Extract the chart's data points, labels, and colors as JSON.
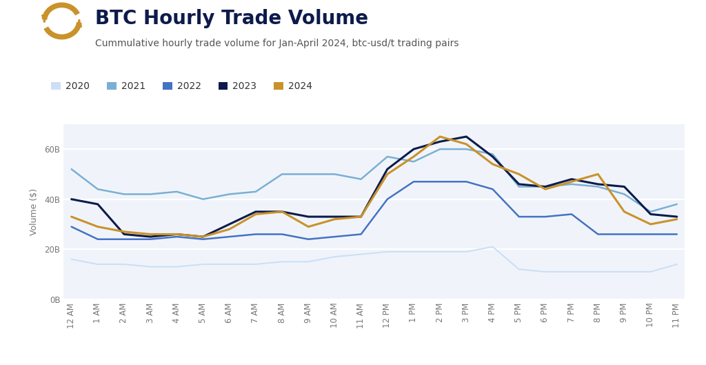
{
  "title": "BTC Hourly Trade Volume",
  "subtitle": "Cummulative hourly trade volume for Jan-April 2024, btc-usd/t trading pairs",
  "ylabel": "Volume ($)",
  "hours": [
    "12 AM",
    "1 AM",
    "2 AM",
    "3 AM",
    "4 AM",
    "5 AM",
    "6 AM",
    "7 AM",
    "8 AM",
    "9 AM",
    "10 AM",
    "11 AM",
    "12 PM",
    "1 PM",
    "2 PM",
    "3 PM",
    "4 PM",
    "5 PM",
    "6 PM",
    "7 PM",
    "8 PM",
    "9 PM",
    "10 PM",
    "11 PM"
  ],
  "series": {
    "2020": [
      16,
      14,
      14,
      13,
      13,
      14,
      14,
      14,
      15,
      15,
      17,
      18,
      19,
      19,
      19,
      19,
      21,
      12,
      11,
      11,
      11,
      11,
      11,
      14
    ],
    "2021": [
      52,
      44,
      42,
      42,
      43,
      40,
      42,
      43,
      50,
      50,
      50,
      48,
      57,
      55,
      60,
      60,
      58,
      45,
      45,
      46,
      45,
      42,
      35,
      38
    ],
    "2022": [
      29,
      24,
      24,
      24,
      25,
      24,
      25,
      26,
      26,
      24,
      25,
      26,
      40,
      47,
      47,
      47,
      44,
      33,
      33,
      34,
      26,
      26,
      26,
      26
    ],
    "2023": [
      40,
      38,
      26,
      25,
      26,
      25,
      30,
      35,
      35,
      33,
      33,
      33,
      52,
      60,
      63,
      65,
      57,
      46,
      45,
      48,
      46,
      45,
      34,
      33
    ],
    "2024": [
      33,
      29,
      27,
      26,
      26,
      25,
      28,
      34,
      35,
      29,
      32,
      33,
      50,
      57,
      65,
      62,
      54,
      50,
      44,
      47,
      50,
      35,
      30,
      32
    ]
  },
  "colors": {
    "2020": "#ccdff5",
    "2021": "#7aafd4",
    "2022": "#4472c4",
    "2023": "#0d1b4b",
    "2024": "#c9922a"
  },
  "linewidths": {
    "2020": 1.5,
    "2021": 1.8,
    "2022": 1.8,
    "2023": 2.2,
    "2024": 2.2
  },
  "ylim": [
    0,
    70
  ],
  "ytick_vals": [
    0,
    20,
    40,
    60
  ],
  "ytick_labels": [
    "0B",
    "20B",
    "40B",
    "60B"
  ],
  "background_color": "#ffffff",
  "plot_bg_color": "#f0f4fa",
  "grid_color": "#ffffff",
  "title_color": "#0d1b4b",
  "subtitle_color": "#555555",
  "title_fontsize": 20,
  "subtitle_fontsize": 10,
  "legend_fontsize": 10,
  "tick_fontsize": 8.5,
  "axis_label_fontsize": 9
}
